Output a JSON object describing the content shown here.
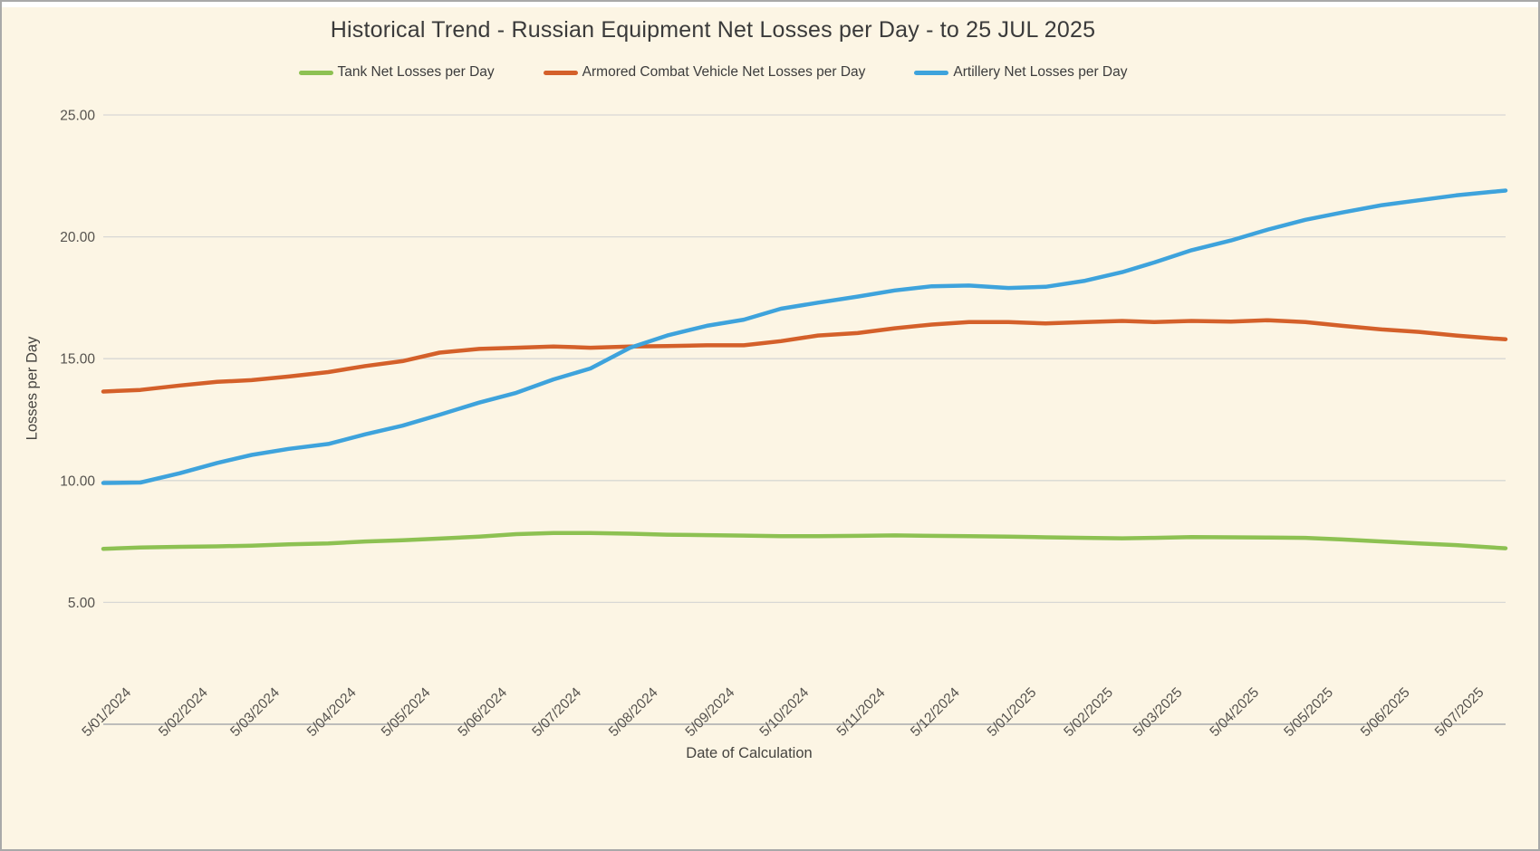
{
  "chart_data": {
    "type": "line",
    "title": "Historical Trend - Russian Equipment Net Losses per Day - to 25 JUL 2025",
    "xlabel": "Date of Calculation",
    "ylabel": "Losses per Day",
    "ylim": [
      0,
      25
    ],
    "grid": true,
    "legend_position": "top",
    "background_color": "#FCF5E4",
    "gridline_color": "#D8D8D5",
    "axisline_color": "#BDBDBA",
    "x_unit": "days since first point (5/01/2024), data to 25 JUL 2025",
    "x_domain_days": [
      0,
      567
    ],
    "x_ticks": [
      {
        "day": 0,
        "label": "5/01/2024"
      },
      {
        "day": 31,
        "label": "5/02/2024"
      },
      {
        "day": 60,
        "label": "5/03/2024"
      },
      {
        "day": 91,
        "label": "5/04/2024"
      },
      {
        "day": 121,
        "label": "5/05/2024"
      },
      {
        "day": 152,
        "label": "5/06/2024"
      },
      {
        "day": 182,
        "label": "5/07/2024"
      },
      {
        "day": 213,
        "label": "5/08/2024"
      },
      {
        "day": 244,
        "label": "5/09/2024"
      },
      {
        "day": 274,
        "label": "5/10/2024"
      },
      {
        "day": 305,
        "label": "5/11/2024"
      },
      {
        "day": 335,
        "label": "5/12/2024"
      },
      {
        "day": 366,
        "label": "5/01/2025"
      },
      {
        "day": 397,
        "label": "5/02/2025"
      },
      {
        "day": 425,
        "label": "5/03/2025"
      },
      {
        "day": 456,
        "label": "5/04/2025"
      },
      {
        "day": 486,
        "label": "5/05/2025"
      },
      {
        "day": 517,
        "label": "5/06/2025"
      },
      {
        "day": 547,
        "label": "5/07/2025"
      }
    ],
    "y_ticks": [
      {
        "value": 0,
        "label": "-"
      },
      {
        "value": 5,
        "label": "5.00"
      },
      {
        "value": 10,
        "label": "10.00"
      },
      {
        "value": 15,
        "label": "15.00"
      },
      {
        "value": 20,
        "label": "20.00"
      },
      {
        "value": 25,
        "label": "25.00"
      }
    ],
    "x_sample_days": [
      0,
      15,
      31,
      46,
      60,
      75,
      91,
      106,
      121,
      136,
      152,
      167,
      182,
      197,
      213,
      228,
      244,
      259,
      274,
      289,
      305,
      320,
      335,
      350,
      366,
      381,
      397,
      412,
      425,
      440,
      456,
      471,
      486,
      501,
      517,
      532,
      547,
      562,
      567
    ],
    "series": [
      {
        "name": "Tank Net Losses per Day",
        "color": "#8DC152",
        "values": [
          7.2,
          7.25,
          7.28,
          7.3,
          7.33,
          7.38,
          7.42,
          7.5,
          7.55,
          7.62,
          7.7,
          7.8,
          7.85,
          7.85,
          7.82,
          7.78,
          7.76,
          7.74,
          7.72,
          7.72,
          7.73,
          7.75,
          7.73,
          7.72,
          7.7,
          7.67,
          7.65,
          7.63,
          7.65,
          7.68,
          7.67,
          7.66,
          7.65,
          7.58,
          7.5,
          7.42,
          7.35,
          7.25,
          7.22
        ]
      },
      {
        "name": "Armored Combat Vehicle Net Losses per Day",
        "color": "#D4602A",
        "values": [
          13.65,
          13.72,
          13.9,
          14.05,
          14.12,
          14.27,
          14.45,
          14.7,
          14.9,
          15.25,
          15.4,
          15.45,
          15.5,
          15.45,
          15.5,
          15.52,
          15.55,
          15.55,
          15.72,
          15.95,
          16.05,
          16.25,
          16.4,
          16.5,
          16.5,
          16.45,
          16.5,
          16.55,
          16.5,
          16.55,
          16.52,
          16.58,
          16.5,
          16.35,
          16.2,
          16.1,
          15.95,
          15.83,
          15.8
        ]
      },
      {
        "name": "Artillery Net Losses per Day",
        "color": "#3EA3DC",
        "values": [
          9.9,
          9.92,
          10.3,
          10.72,
          11.05,
          11.3,
          11.5,
          11.9,
          12.25,
          12.7,
          13.2,
          13.6,
          14.15,
          14.6,
          15.45,
          15.95,
          16.35,
          16.6,
          17.05,
          17.3,
          17.55,
          17.8,
          17.97,
          18.0,
          17.9,
          17.95,
          18.2,
          18.55,
          18.95,
          19.45,
          19.85,
          20.3,
          20.7,
          21.0,
          21.3,
          21.5,
          21.7,
          21.85,
          21.9
        ]
      }
    ]
  }
}
